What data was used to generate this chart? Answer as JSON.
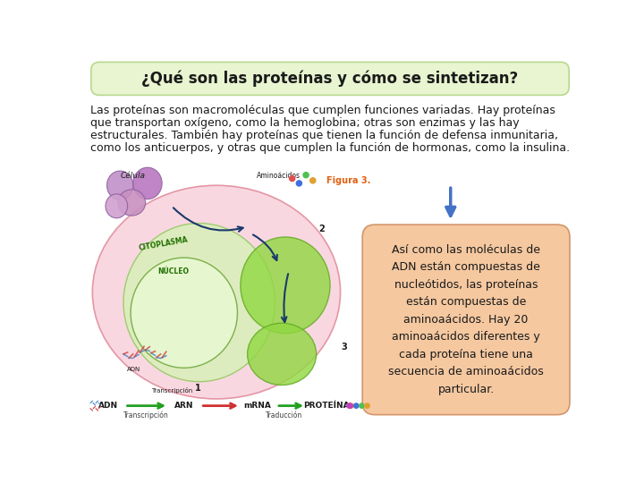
{
  "title": "¿Qué son las proteínas y cómo se sintetizan?",
  "title_bg_color": "#e8f5d0",
  "title_border_color": "#b8d890",
  "body_text_line1": "Las proteínas son macromoléculas que cumplen funciones variadas. Hay proteínas",
  "body_text_line2": "que transportan oxígeno, como la hemoglobina; otras son enzimas y las hay",
  "body_text_line3": "estructurales. También hay proteínas que tienen la función de defensa inmunitaria,",
  "body_text_line4": "como los anticuerpos, y otras que cumplen la función de hormonas, como la insulina.",
  "body_text_color": "#1a1a1a",
  "info_box_text": "Así como las moléculas de\nADN están compuestas de\nnucleótidos, las proteínas\nestán compuestas de\naminoaácidos. Hay 20\naminoaácidos diferentes y\ncada proteína tiene una\nsecuencia de aminoaácidos\nparticular.",
  "info_box_bg_color": "#f5c8a0",
  "info_box_border_color": "#d4956a",
  "info_box_text_color": "#1a1a1a",
  "arrow_color": "#4472c4",
  "background_color": "#ffffff",
  "title_fontsize": 12,
  "body_fontsize": 9,
  "info_fontsize": 9
}
